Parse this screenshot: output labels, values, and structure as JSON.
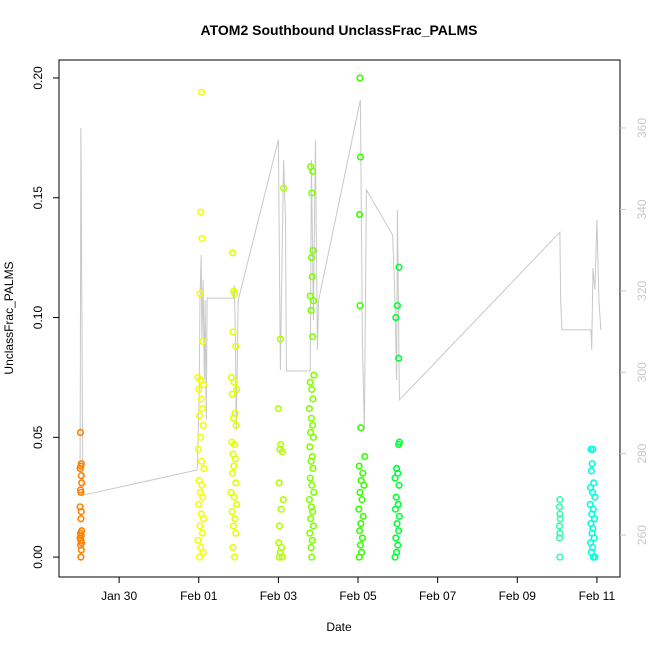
{
  "chart_data": {
    "type": "scatter",
    "title": "ATOM2 Southbound UnclassFrac_PALMS",
    "x_label": "Date",
    "y_label": "UnclassFrac_PALMS",
    "xlim": [
      28.49,
      42.58
    ],
    "xticks": [
      {
        "value": 30,
        "label": "Jan 30"
      },
      {
        "value": 32,
        "label": "Feb 01"
      },
      {
        "value": 34,
        "label": "Feb 03"
      },
      {
        "value": 36,
        "label": "Feb 05"
      },
      {
        "value": 38,
        "label": "Feb 07"
      },
      {
        "value": 40,
        "label": "Feb 09"
      },
      {
        "value": 42,
        "label": "Feb 11"
      }
    ],
    "ylim": [
      -0.0083,
      0.2075
    ],
    "yticks": [
      {
        "value": 0,
        "label": "0.00"
      },
      0.05,
      {
        "value": 0.1,
        "label": "0.10"
      },
      0.15,
      {
        "value": 0.2,
        "label": "0.20"
      }
    ],
    "y2lim": [
      249.7,
      376.7
    ],
    "y2ticks": [
      260,
      280,
      300,
      320,
      340,
      360
    ],
    "y2_color": "#c8c8c8",
    "series": [
      {
        "type": "line",
        "axis": "y2",
        "color": "#c8c8c8",
        "x": [
          29.02,
          29.04,
          29.09,
          31.96,
          32.01,
          32.03,
          32.06,
          32.08,
          32.11,
          32.14,
          32.16,
          32.19,
          32.21,
          32.87,
          32.89,
          32.92,
          32.94,
          32.97,
          32.99,
          34.0,
          34.05,
          34.13,
          34.18,
          34.2,
          34.8,
          34.83,
          34.88,
          34.93,
          34.98,
          35.01,
          36.06,
          36.11,
          36.16,
          36.21,
          36.87,
          36.92,
          36.97,
          36.99,
          37.04,
          41.07,
          41.09,
          41.12,
          41.85,
          41.87,
          41.9,
          41.95,
          42.0,
          42.05,
          42.1
        ],
        "values": [
          276.0,
          360.0,
          269.8,
          276.0,
          293.2,
          317.7,
          328.8,
          307.9,
          322.7,
          298.1,
          317.7,
          288.3,
          318.2,
          318.2,
          321.4,
          310.4,
          285.8,
          303.0,
          317.7,
          357.1,
          300.5,
          352.1,
          337.4,
          300.3,
          300.3,
          352.1,
          312.8,
          357.1,
          305.5,
          317.7,
          366.9,
          307.9,
          285.8,
          344.8,
          333.7,
          320.2,
          298.1,
          339.9,
          293.2,
          334.4,
          317.7,
          310.4,
          310.4,
          305.5,
          325.6,
          320.2,
          337.4,
          317.7,
          310.4
        ]
      },
      {
        "color": "#ff8000",
        "x": [
          29.03,
          29.05,
          29.04,
          29.02,
          29.05,
          29.06,
          29.03,
          29.04,
          29.02,
          29.05,
          29.04,
          29.06,
          29.03,
          29.05,
          29.02,
          29.04,
          29.06,
          29.03,
          29.05,
          29.04
        ],
        "values": [
          0.052,
          0.039,
          0.038,
          0.037,
          0.034,
          0.031,
          0.028,
          0.027,
          0.021,
          0.019,
          0.016,
          0.011,
          0.01,
          0.009,
          0.008,
          0.007,
          0.006,
          0.005,
          0.003,
          0.0
        ]
      },
      {
        "color": "#f2ff00",
        "x": [
          32.07,
          32.05,
          32.08,
          32.03,
          32.1,
          31.98,
          32.04,
          32.12,
          32.0,
          32.06,
          32.09,
          32.02,
          32.11,
          32.05,
          31.99,
          32.07,
          32.13,
          32.01,
          32.08,
          32.04,
          32.1,
          32.0,
          32.06,
          32.12,
          32.03,
          32.09,
          31.98,
          32.05,
          32.11,
          32.02
        ],
        "values": [
          0.194,
          0.144,
          0.133,
          0.11,
          0.09,
          0.075,
          0.074,
          0.072,
          0.07,
          0.066,
          0.062,
          0.059,
          0.055,
          0.05,
          0.045,
          0.04,
          0.037,
          0.032,
          0.03,
          0.027,
          0.025,
          0.022,
          0.018,
          0.016,
          0.013,
          0.01,
          0.007,
          0.004,
          0.002,
          0.0
        ]
      },
      {
        "color": "#e0ff00",
        "x": [
          32.85,
          32.88,
          32.9,
          32.86,
          32.93,
          32.82,
          32.89,
          32.95,
          32.84,
          32.91,
          32.87,
          32.94,
          32.83,
          32.9,
          32.86,
          32.92,
          32.88,
          32.85,
          32.93,
          32.81,
          32.89,
          32.95,
          32.84,
          32.91,
          32.87,
          32.93,
          32.86,
          32.9
        ],
        "values": [
          0.127,
          0.111,
          0.11,
          0.094,
          0.088,
          0.075,
          0.073,
          0.07,
          0.068,
          0.06,
          0.058,
          0.055,
          0.048,
          0.047,
          0.043,
          0.041,
          0.038,
          0.035,
          0.031,
          0.027,
          0.025,
          0.022,
          0.019,
          0.016,
          0.013,
          0.01,
          0.004,
          0.0
        ]
      },
      {
        "color": "#b0ff00",
        "x": [
          34.13,
          34.05,
          34.0,
          34.06,
          34.04,
          34.1,
          34.02,
          34.12,
          34.07,
          34.03,
          34.01,
          34.08,
          34.05,
          34.02,
          34.1
        ],
        "values": [
          0.154,
          0.091,
          0.062,
          0.047,
          0.045,
          0.044,
          0.031,
          0.024,
          0.02,
          0.013,
          0.006,
          0.004,
          0.002,
          0.0,
          0.0
        ]
      },
      {
        "color": "#80ff00",
        "x": [
          34.81,
          34.86,
          34.84,
          34.87,
          34.83,
          34.85,
          34.8,
          34.88,
          34.82,
          34.86,
          34.89,
          34.8,
          34.84,
          34.87,
          34.78,
          34.83,
          34.86,
          34.81,
          34.88,
          34.79,
          34.85,
          34.82,
          34.87,
          34.8,
          34.84,
          34.89,
          34.78,
          34.83,
          34.86,
          34.81,
          34.88,
          34.79,
          34.85,
          34.82,
          34.84
        ],
        "values": [
          0.163,
          0.161,
          0.152,
          0.128,
          0.125,
          0.117,
          0.109,
          0.107,
          0.103,
          0.092,
          0.076,
          0.073,
          0.07,
          0.066,
          0.062,
          0.058,
          0.055,
          0.052,
          0.05,
          0.046,
          0.042,
          0.04,
          0.037,
          0.033,
          0.03,
          0.027,
          0.024,
          0.021,
          0.019,
          0.016,
          0.013,
          0.01,
          0.007,
          0.004,
          0.0
        ]
      },
      {
        "color": "#33ff00",
        "x": [
          36.05,
          36.06,
          36.04,
          36.05,
          36.07,
          36.17,
          36.03,
          36.12,
          36.08,
          36.15,
          36.05,
          36.1,
          36.02,
          36.13,
          36.07,
          36.04,
          36.11,
          36.06,
          36.09,
          36.03
        ],
        "values": [
          0.2,
          0.167,
          0.143,
          0.105,
          0.054,
          0.042,
          0.038,
          0.035,
          0.032,
          0.03,
          0.027,
          0.024,
          0.02,
          0.017,
          0.014,
          0.011,
          0.008,
          0.005,
          0.002,
          0.0
        ]
      },
      {
        "color": "#00ff33",
        "x": [
          37.03,
          36.99,
          36.95,
          37.02,
          37.04,
          37.02,
          36.97,
          37.0,
          36.93,
          37.03,
          36.96,
          37.01,
          36.94,
          37.04,
          36.98,
          37.02,
          36.95,
          37.0,
          36.97,
          36.93
        ],
        "values": [
          0.121,
          0.105,
          0.1,
          0.083,
          0.048,
          0.047,
          0.037,
          0.035,
          0.033,
          0.03,
          0.025,
          0.022,
          0.02,
          0.017,
          0.014,
          0.011,
          0.008,
          0.005,
          0.002,
          0.0
        ]
      },
      {
        "color": "#33ffaa",
        "x": [
          41.07,
          41.06,
          41.07,
          41.08,
          41.06,
          41.07,
          41.06,
          41.07
        ],
        "values": [
          0.024,
          0.021,
          0.018,
          0.016,
          0.013,
          0.01,
          0.008,
          0.0
        ]
      },
      {
        "color": "#00ffdd",
        "x": [
          41.85,
          41.9,
          41.88,
          41.86,
          41.92,
          41.84,
          41.89,
          41.95,
          41.83,
          41.91,
          41.87,
          41.94,
          41.85,
          41.9,
          41.88,
          41.93,
          41.84,
          41.89,
          41.86,
          41.91,
          41.95
        ],
        "values": [
          0.045,
          0.045,
          0.039,
          0.036,
          0.031,
          0.029,
          0.027,
          0.025,
          0.022,
          0.02,
          0.018,
          0.016,
          0.014,
          0.012,
          0.01,
          0.008,
          0.006,
          0.004,
          0.002,
          0.0,
          0.0
        ]
      }
    ]
  }
}
